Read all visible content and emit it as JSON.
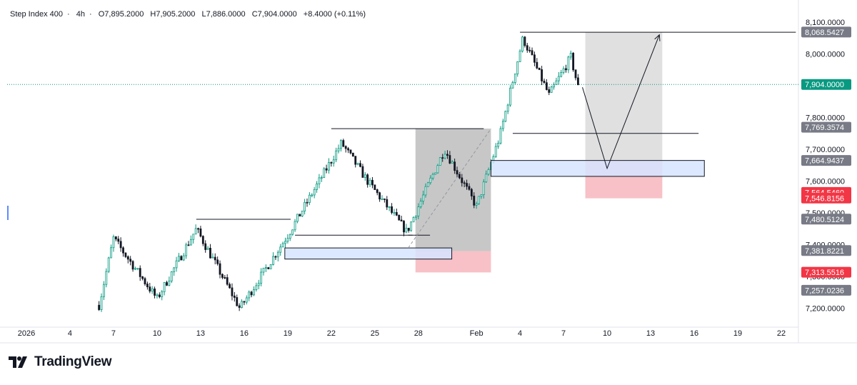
{
  "legend": {
    "symbol": "Step Index 400",
    "sep": "·",
    "timeframe": "4h",
    "sep2": "·",
    "open": "O7,895.2000",
    "high": "H7,905.2000",
    "low": "L7,886.0000",
    "close": "C7,904.0000",
    "change": "+8.4000 (+0.11%)"
  },
  "brand": {
    "name": "TradingView"
  },
  "colors": {
    "up": "#089981",
    "down": "#131722",
    "price_line": "#089981",
    "grey_box": "#c7c7c7",
    "light_grey_box": "#e0e0e0",
    "red_box": "#f7c1c7",
    "blue_zone": "#d6e4ff",
    "blue_border": "#131722",
    "badge_grey": "#787b86",
    "badge_red": "#f23645",
    "badge_green": "#089981"
  },
  "chart_data": {
    "type": "candlestick",
    "title": "",
    "ylim": [
      7150,
      8120
    ],
    "y_ticks": [
      "7,200.0000",
      "7,300.0000",
      "7,400.0000",
      "7,500.0000",
      "7,600.0000",
      "7,700.0000",
      "7,800.0000",
      "8,000.0000",
      "8,100.0000"
    ],
    "x_ticks": [
      "2026",
      "4",
      "7",
      "10",
      "13",
      "16",
      "19",
      "22",
      "25",
      "28",
      "Feb",
      "4",
      "7",
      "10",
      "13",
      "16",
      "19",
      "22"
    ],
    "x_start": "2026-01-01",
    "x_end": "2026-02-23",
    "candles_start": "2026-01-06",
    "candles_end": "2026-02-08",
    "candles_per_day": 6,
    "trend_waypoints": [
      {
        "x": "2026-01-06",
        "y": 7210
      },
      {
        "x": "2026-01-07",
        "y": 7420
      },
      {
        "x": "2026-01-10",
        "y": 7230
      },
      {
        "x": "2026-01-12.7",
        "y": 7450
      },
      {
        "x": "2026-01-15.7",
        "y": 7200
      },
      {
        "x": "2026-01-19",
        "y": 7430
      },
      {
        "x": "2026-01-22.7",
        "y": 7720
      },
      {
        "x": "2026-01-24.5",
        "y": 7600
      },
      {
        "x": "2026-01-27.2",
        "y": 7440
      },
      {
        "x": "2026-01-29.8",
        "y": 7700
      },
      {
        "x": "2026-02-01",
        "y": 7520
      },
      {
        "x": "2026-02-02.6",
        "y": 7740
      },
      {
        "x": "2026-02-04.2",
        "y": 8050
      },
      {
        "x": "2026-02-06",
        "y": 7870
      },
      {
        "x": "2026-02-07.5",
        "y": 7990
      },
      {
        "x": "2026-02-08",
        "y": 7895
      }
    ],
    "last_price": 7904.0,
    "price_labels": [
      {
        "value": 8068.5427,
        "text": "8,068.5427",
        "style": "grey"
      },
      {
        "value": 7904.0,
        "text": "7,904.0000",
        "style": "green"
      },
      {
        "value": 7769.3574,
        "text": "7,769.3574",
        "style": "grey"
      },
      {
        "value": 7664.9437,
        "text": "7,664.9437",
        "style": "grey"
      },
      {
        "value": 7564.546,
        "text": "7,564.5460",
        "style": "red"
      },
      {
        "value": 7546.8156,
        "text": "7,546.8156",
        "style": "red"
      },
      {
        "value": 7480.5124,
        "text": "7,480.5124",
        "style": "grey"
      },
      {
        "value": 7381.8221,
        "text": "7,381.8221",
        "style": "grey"
      },
      {
        "value": 7313.5516,
        "text": "7,313.5516",
        "style": "red"
      },
      {
        "value": 7257.0236,
        "text": "7,257.0236",
        "style": "grey"
      }
    ],
    "drawings": {
      "grey_box": {
        "x0": "2026-01-27.8",
        "x1": "2026-02-02",
        "y0": 7380,
        "y1": 7765
      },
      "red_box_1": {
        "x0": "2026-01-27.8",
        "x1": "2026-02-02",
        "y0": 7313,
        "y1": 7380
      },
      "light_grey_box": {
        "x0": "2026-02-08.5",
        "x1": "2026-02-13.8",
        "y0": 7564,
        "y1": 8068
      },
      "red_box_2": {
        "x0": "2026-02-08.5",
        "x1": "2026-02-13.8",
        "y0": 7546,
        "y1": 7664
      },
      "blue_zone_1": {
        "x0": "2026-01-18.8",
        "x1": "2026-01-30.3",
        "y0": 7355,
        "y1": 7390
      },
      "blue_zone_2": {
        "x0": "2026-02-02",
        "x1": "2026-02-16.7",
        "y0": 7615,
        "y1": 7665
      },
      "hlines": [
        {
          "x0": "2026-01-12.7",
          "x1": "2026-01-19.2",
          "y": 7480
        },
        {
          "x0": "2026-01-19.5",
          "x1": "2026-01-27.6",
          "y": 7430
        },
        {
          "x0": "2026-01-27.3",
          "x1": "2026-01-28.8",
          "y": 7430
        },
        {
          "x0": "2026-01-22",
          "x1": "2026-02-01.5",
          "y": 7765
        },
        {
          "x0": "2026-02-03.5",
          "x1": "2026-02-16.3",
          "y": 7750
        },
        {
          "x0": "2026-02-04",
          "x1": "2026-02-23",
          "y": 8068
        }
      ],
      "dashed_line": {
        "x0": "2026-01-27.3",
        "y0": 7390,
        "x1": "2026-02-02",
        "y1": 7765
      },
      "projection": [
        {
          "x": "2026-02-08.3",
          "y": 7895
        },
        {
          "x": "2026-02-10",
          "y": 7640
        },
        {
          "x": "2026-02-13.6",
          "y": 8060
        }
      ]
    }
  }
}
